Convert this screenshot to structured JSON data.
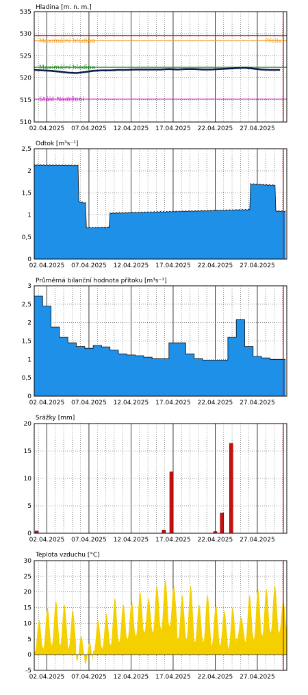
{
  "x_tick_labels": [
    "02.04.2025",
    "07.04.2025",
    "12.04.2025",
    "17.04.2025",
    "22.04.2025",
    "27.04.2025"
  ],
  "colors": {
    "fill_blue": "#1e90e8",
    "line_dark": "#0d1d4a",
    "max_red": "#d01010",
    "threshold_orange": "#f0a020",
    "threshold_green": "#2e8b2e",
    "threshold_magenta": "#d020d0",
    "rain_red": "#cc1010",
    "temp_yellow": "#f5d000",
    "grid": "#444444"
  },
  "chart_data": [
    {
      "id": "hladina",
      "type": "line",
      "title": "Hladina [m. n. m.]",
      "ylim": [
        510,
        535
      ],
      "yticks": [
        "510",
        "515",
        "520",
        "525",
        "530",
        "535"
      ],
      "x_range_days": [
        1,
        31
      ],
      "series": [
        {
          "x": [
            1,
            2,
            3,
            4,
            5,
            6,
            7,
            8,
            9,
            10,
            11,
            12,
            13,
            14,
            15,
            16,
            17,
            18,
            19,
            20,
            21,
            22,
            23,
            24,
            25,
            26,
            27,
            28,
            29,
            30.2
          ],
          "values": [
            521.8,
            521.7,
            521.6,
            521.4,
            521.2,
            521.1,
            521.3,
            521.6,
            521.7,
            521.7,
            521.8,
            521.8,
            521.9,
            521.9,
            521.9,
            521.9,
            522.0,
            521.9,
            522.0,
            522.0,
            521.9,
            521.9,
            522.0,
            522.1,
            522.2,
            522.3,
            522.1,
            521.9,
            521.8,
            521.8
          ]
        }
      ],
      "thresholds": [
        {
          "label": "Maximální hladina",
          "value": 528.4,
          "color": "#f0a020"
        },
        {
          "label": "Přeliv",
          "value": 528.4,
          "color": "#f0a020"
        },
        {
          "label": "Maximální hladina",
          "value": 522.4,
          "color": "#2e8b2e"
        },
        {
          "label": "Stálé Nadržení",
          "value": 515.2,
          "color": "#d020d0"
        },
        {
          "label": "",
          "value": 529.6,
          "color": "#d01010"
        }
      ]
    },
    {
      "id": "odtok",
      "type": "area",
      "title": "Odtok [m³s⁻¹]",
      "ylim": [
        0,
        2.5
      ],
      "yticks": [
        "0",
        "0,5",
        "1",
        "1,5",
        "2",
        "2,5"
      ],
      "x_range_days": [
        1,
        31
      ],
      "x": [
        1,
        6.2,
        6.3,
        7.1,
        7.2,
        9.9,
        10.0,
        26.6,
        26.7,
        29.6,
        29.7,
        30.8
      ],
      "values": [
        2.13,
        2.12,
        1.3,
        1.27,
        0.71,
        0.72,
        1.04,
        1.12,
        1.7,
        1.67,
        1.09,
        1.08
      ]
    },
    {
      "id": "bilancni_pritok",
      "type": "area",
      "title": "Průměrná bilanční hodnota přítoku   [m³s⁻¹]",
      "ylim": [
        0,
        3
      ],
      "yticks": [
        "0",
        "0,5",
        "1",
        "1,5",
        "2",
        "2,5",
        "3"
      ],
      "x_range_days": [
        1,
        31
      ],
      "step_x": [
        1,
        2,
        3,
        4,
        5,
        6,
        7,
        8,
        9,
        10,
        11,
        12,
        13,
        14,
        15,
        16,
        17,
        18,
        19,
        20,
        21,
        22,
        23,
        24,
        25,
        26,
        27,
        28,
        29,
        30
      ],
      "step_values": [
        2.72,
        2.45,
        1.88,
        1.6,
        1.45,
        1.35,
        1.3,
        1.38,
        1.34,
        1.25,
        1.15,
        1.12,
        1.1,
        1.06,
        1.02,
        1.02,
        1.45,
        1.45,
        1.15,
        1.02,
        0.98,
        0.98,
        0.98,
        1.6,
        2.08,
        1.35,
        1.08,
        1.04,
        1.0,
        1.0
      ]
    },
    {
      "id": "srazky",
      "type": "bar",
      "title": "Srážky [mm]",
      "ylim": [
        0,
        20
      ],
      "yticks": [
        "0",
        "5",
        "10",
        "15",
        "20"
      ],
      "x_range_days": [
        1,
        31
      ],
      "x": [
        1.3,
        16.4,
        17.3,
        22.5,
        23.3,
        24.4
      ],
      "values": [
        0.4,
        0.6,
        11.2,
        0.3,
        3.7,
        16.4
      ]
    },
    {
      "id": "teplota",
      "type": "area",
      "title": "Teplota vzduchu [°C]",
      "ylim": [
        -5,
        30
      ],
      "yticks": [
        "-5",
        "0",
        "5",
        "10",
        "15",
        "20",
        "25",
        "30"
      ],
      "x_range_days": [
        1,
        31
      ],
      "daily_min": [
        1,
        2,
        3,
        3,
        2,
        -2,
        -3,
        1,
        2,
        3,
        4,
        5,
        6,
        7,
        7,
        8,
        9,
        5,
        5,
        4,
        4,
        3,
        3,
        2,
        5,
        4,
        5,
        6,
        7,
        7
      ],
      "daily_max": [
        11,
        15,
        17,
        16,
        14,
        6,
        4,
        11,
        13,
        18,
        16,
        17,
        20,
        18,
        22,
        24,
        22,
        19,
        22,
        16,
        19,
        16,
        14,
        15,
        12,
        19,
        21,
        21,
        22,
        17
      ]
    }
  ]
}
